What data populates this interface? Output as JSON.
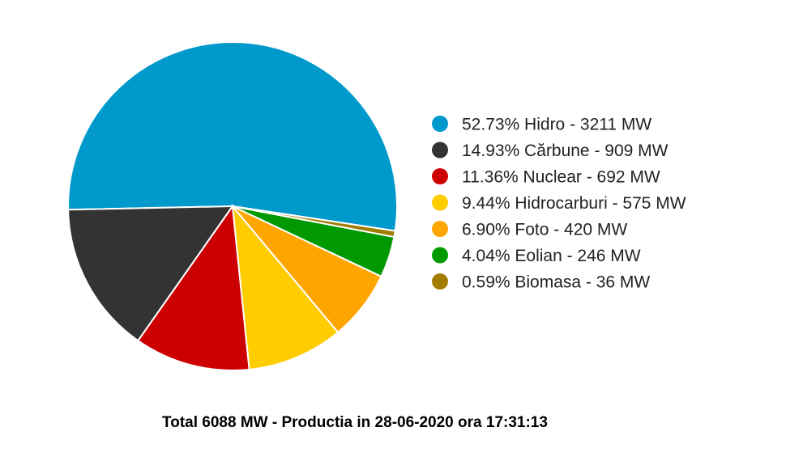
{
  "chart_data": {
    "type": "pie",
    "slices": [
      {
        "label": "52.73% Hidro - 3211 MW",
        "name": "Hidro",
        "percent": 52.73,
        "value": 3211,
        "color": "#0099CC"
      },
      {
        "label": "14.93% Cărbune - 909 MW",
        "name": "Cărbune",
        "percent": 14.93,
        "value": 909,
        "color": "#333333"
      },
      {
        "label": "11.36% Nuclear - 692 MW",
        "name": "Nuclear",
        "percent": 11.36,
        "value": 692,
        "color": "#CC0000"
      },
      {
        "label": "9.44% Hidrocarburi - 575 MW",
        "name": "Hidrocarburi",
        "percent": 9.44,
        "value": 575,
        "color": "#FFCC00"
      },
      {
        "label": "6.90% Foto - 420 MW",
        "name": "Foto",
        "percent": 6.9,
        "value": 420,
        "color": "#FFA500"
      },
      {
        "label": "4.04% Eolian - 246 MW",
        "name": "Eolian",
        "percent": 4.04,
        "value": 246,
        "color": "#009900"
      },
      {
        "label": "0.59% Biomasa - 36 MW",
        "name": "Biomasa",
        "percent": 0.59,
        "value": 36,
        "color": "#A07D00"
      }
    ],
    "legend_position": "right",
    "footer": "Total 6088 MW - Productia in 28-06-2020 ora 17:31:13"
  }
}
